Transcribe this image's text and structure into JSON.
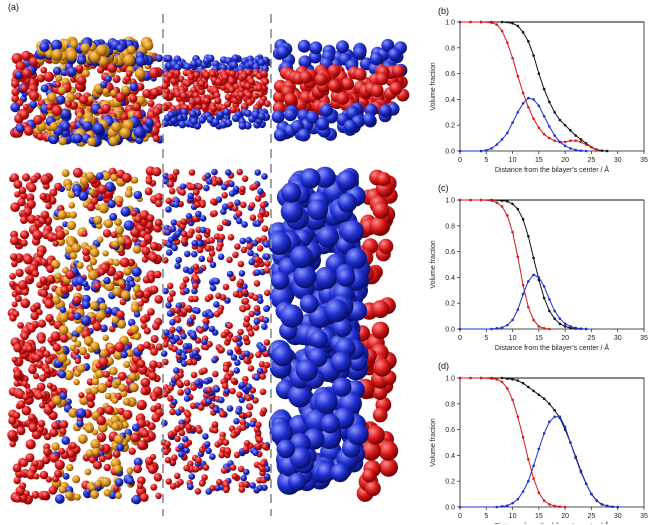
{
  "panel_labels": {
    "a": "(a)",
    "b": "(b)",
    "c": "(c)",
    "d": "(d)"
  },
  "colors": {
    "water": "#d61a1a",
    "probe": "#1f2fd0",
    "lipid": "#d8901c",
    "total": "#111111"
  },
  "chart_data": [
    {
      "type": "line",
      "panel": "(b)",
      "xlabel": "Distance from the bilayer's center / Å",
      "ylabel": "Volume fraction",
      "xlim": [
        0,
        35
      ],
      "ylim": [
        0,
        1.0
      ],
      "xticks": [
        "0",
        "5",
        "10",
        "15",
        "20",
        "25",
        "30",
        "35"
      ],
      "yticks": [
        "0.0",
        "0.2",
        "0.4",
        "0.6",
        "0.8",
        "1.0"
      ],
      "reference_line": 1.0,
      "series": [
        {
          "color": "black",
          "x": [
            0,
            2,
            4,
            6,
            8,
            10,
            11,
            12,
            13,
            14,
            15,
            16,
            17,
            18,
            19,
            20,
            21,
            22,
            23,
            24,
            25,
            26,
            27,
            28
          ],
          "y": [
            1,
            1,
            1,
            1,
            1,
            0.99,
            0.97,
            0.92,
            0.85,
            0.74,
            0.6,
            0.48,
            0.38,
            0.3,
            0.24,
            0.2,
            0.16,
            0.12,
            0.09,
            0.06,
            0.03,
            0.01,
            0.003,
            0
          ]
        },
        {
          "color": "red",
          "x": [
            0,
            2,
            4,
            6,
            7,
            8,
            9,
            10,
            11,
            12,
            13,
            14,
            15,
            16,
            17,
            18,
            19,
            20,
            21,
            22,
            23,
            24,
            25,
            26
          ],
          "y": [
            1,
            1,
            1,
            0.995,
            0.98,
            0.93,
            0.84,
            0.72,
            0.58,
            0.45,
            0.34,
            0.25,
            0.18,
            0.13,
            0.1,
            0.08,
            0.07,
            0.07,
            0.08,
            0.08,
            0.07,
            0.05,
            0.03,
            0.005
          ]
        },
        {
          "color": "blue",
          "x": [
            0,
            4,
            5,
            6,
            7,
            8,
            9,
            10,
            11,
            12,
            13,
            14,
            15,
            16,
            17,
            18,
            19,
            20,
            21,
            22,
            23,
            24
          ],
          "y": [
            0,
            0,
            0.005,
            0.02,
            0.05,
            0.09,
            0.14,
            0.22,
            0.3,
            0.37,
            0.41,
            0.4,
            0.35,
            0.27,
            0.19,
            0.12,
            0.07,
            0.04,
            0.02,
            0.008,
            0.003,
            0
          ]
        }
      ]
    },
    {
      "type": "line",
      "panel": "(c)",
      "xlabel": "Distance from the bilayer's center / Å",
      "ylabel": "Volume fraction",
      "xlim": [
        0,
        35
      ],
      "ylim": [
        0,
        1.0
      ],
      "xticks": [
        "0",
        "5",
        "10",
        "15",
        "20",
        "25",
        "30",
        "35"
      ],
      "yticks": [
        "0.0",
        "0.2",
        "0.4",
        "0.6",
        "0.8",
        "1.0"
      ],
      "reference_line": 1.0,
      "series": [
        {
          "color": "black",
          "x": [
            0,
            2,
            4,
            6,
            8,
            9,
            10,
            11,
            12,
            13,
            14,
            15,
            16,
            17,
            18,
            19,
            20,
            21,
            22,
            23,
            24
          ],
          "y": [
            1,
            1,
            1,
            1,
            0.995,
            0.99,
            0.97,
            0.93,
            0.85,
            0.72,
            0.55,
            0.38,
            0.24,
            0.14,
            0.08,
            0.04,
            0.02,
            0.008,
            0.003,
            0.001,
            0
          ]
        },
        {
          "color": "red",
          "x": [
            0,
            2,
            4,
            6,
            7,
            8,
            9,
            10,
            11,
            12,
            13,
            14,
            15,
            16,
            17
          ],
          "y": [
            1,
            1,
            1,
            0.995,
            0.98,
            0.95,
            0.88,
            0.75,
            0.56,
            0.34,
            0.17,
            0.07,
            0.02,
            0.005,
            0
          ]
        },
        {
          "color": "blue",
          "x": [
            0,
            6,
            7,
            8,
            9,
            10,
            11,
            12,
            13,
            14,
            15,
            16,
            17,
            18,
            19,
            20,
            21,
            22,
            23,
            24
          ],
          "y": [
            0,
            0,
            0.005,
            0.01,
            0.03,
            0.07,
            0.15,
            0.27,
            0.37,
            0.42,
            0.4,
            0.33,
            0.23,
            0.14,
            0.08,
            0.04,
            0.02,
            0.008,
            0.003,
            0
          ]
        }
      ]
    },
    {
      "type": "line",
      "panel": "(d)",
      "xlabel": "Distance from the bilayer's center / Å",
      "ylabel": "Volume fraction",
      "xlim": [
        0,
        35
      ],
      "ylim": [
        0,
        1.0
      ],
      "xticks": [
        "0",
        "5",
        "10",
        "15",
        "20",
        "25",
        "30",
        "35"
      ],
      "yticks": [
        "0.0",
        "0.2",
        "0.4",
        "0.6",
        "0.8",
        "1.0"
      ],
      "reference_line": 1.0,
      "series": [
        {
          "color": "black",
          "x": [
            0,
            2,
            4,
            6,
            8,
            9,
            10,
            11,
            12,
            13,
            14,
            15,
            16,
            17,
            18,
            19,
            20,
            21,
            22,
            23,
            24,
            25,
            26,
            27,
            28,
            29,
            30
          ],
          "y": [
            1,
            1,
            1,
            1,
            1,
            0.995,
            0.99,
            0.98,
            0.96,
            0.93,
            0.9,
            0.87,
            0.84,
            0.8,
            0.75,
            0.69,
            0.6,
            0.5,
            0.39,
            0.28,
            0.18,
            0.1,
            0.05,
            0.02,
            0.008,
            0.002,
            0
          ]
        },
        {
          "color": "red",
          "x": [
            0,
            2,
            4,
            6,
            7,
            8,
            9,
            10,
            11,
            12,
            13,
            14,
            15,
            16,
            17,
            18,
            19,
            20
          ],
          "y": [
            1,
            1,
            1,
            0.995,
            0.99,
            0.97,
            0.92,
            0.83,
            0.7,
            0.54,
            0.37,
            0.22,
            0.11,
            0.05,
            0.02,
            0.008,
            0.003,
            0
          ]
        },
        {
          "color": "blue",
          "x": [
            0,
            7,
            8,
            9,
            10,
            11,
            12,
            13,
            14,
            15,
            16,
            17,
            18,
            19,
            20,
            21,
            22,
            23,
            24,
            25,
            26,
            27,
            28,
            29,
            30
          ],
          "y": [
            0,
            0,
            0.005,
            0.01,
            0.03,
            0.06,
            0.12,
            0.2,
            0.32,
            0.45,
            0.57,
            0.66,
            0.7,
            0.7,
            0.62,
            0.5,
            0.38,
            0.27,
            0.18,
            0.1,
            0.05,
            0.02,
            0.008,
            0.002,
            0
          ]
        }
      ]
    }
  ]
}
